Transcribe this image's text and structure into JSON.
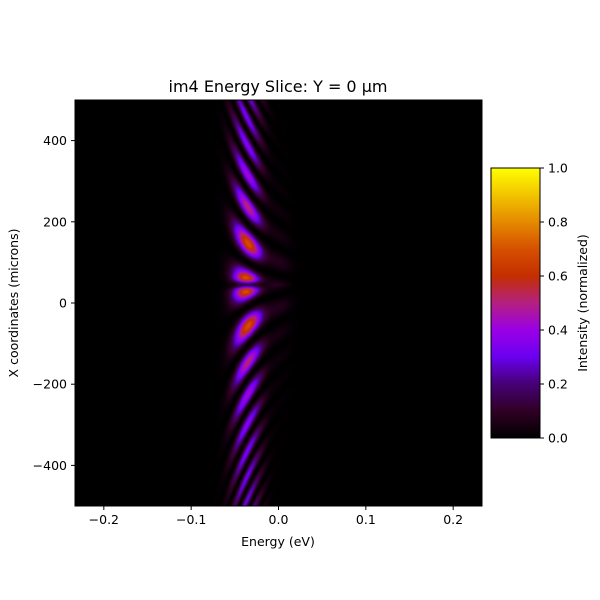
{
  "chart_data": {
    "type": "heatmap",
    "title": "im4 Energy Slice: Y = 0 µm",
    "xlabel": "Energy (eV)",
    "ylabel": "X coordinates (microns)",
    "xlim": [
      -0.233,
      0.233
    ],
    "ylim": [
      -500,
      500
    ],
    "xticks": [
      -0.2,
      -0.1,
      0.0,
      0.1,
      0.2
    ],
    "xtick_labels": [
      "−0.2",
      "−0.1",
      "0.0",
      "0.1",
      "0.2"
    ],
    "yticks": [
      -400,
      -200,
      0,
      200,
      400
    ],
    "ytick_labels": [
      "−400",
      "−200",
      "0",
      "200",
      "400"
    ],
    "colormap": "gnuplot",
    "background_color": "#000000",
    "pattern": {
      "band_energy_range_eV": [
        -0.06,
        0.01
      ],
      "peak_energy_eV": -0.035,
      "peak_x_microns": [
        70,
        25
      ],
      "fringe_pattern": "curved interference fringes spreading from the center, fading toward larger |X|"
    },
    "colorbar": {
      "label": "Intensity (normalized)",
      "range": [
        0,
        1
      ],
      "ticks": [
        0.0,
        0.2,
        0.4,
        0.6,
        0.8,
        1.0
      ],
      "tick_labels": [
        "0.0",
        "0.2",
        "0.4",
        "0.6",
        "0.8",
        "1.0"
      ]
    }
  }
}
